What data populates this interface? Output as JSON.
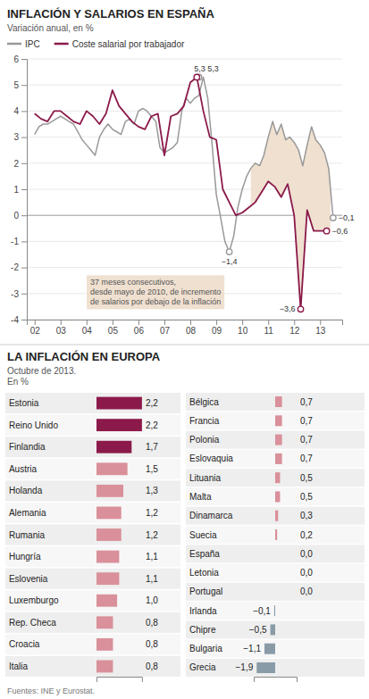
{
  "chart_data": [
    {
      "type": "line",
      "title": "INFLACIÓN Y SALARIOS EN ESPAÑA",
      "subtitle": "Variación anual, en %",
      "legend": "top",
      "grid": true,
      "series": [
        {
          "name": "IPC",
          "color": "#999999",
          "x": [
            2002.0,
            2002.17,
            2002.33,
            2002.5,
            2002.67,
            2002.83,
            2003.0,
            2003.17,
            2003.33,
            2003.5,
            2003.67,
            2003.83,
            2004.0,
            2004.17,
            2004.33,
            2004.5,
            2004.67,
            2004.83,
            2005.0,
            2005.17,
            2005.33,
            2005.5,
            2005.67,
            2005.83,
            2006.0,
            2006.17,
            2006.33,
            2006.5,
            2006.67,
            2006.83,
            2007.0,
            2007.17,
            2007.33,
            2007.5,
            2007.67,
            2007.83,
            2008.0,
            2008.17,
            2008.33,
            2008.5,
            2008.67,
            2008.83,
            2009.0,
            2009.17,
            2009.33,
            2009.5,
            2009.67,
            2009.83,
            2010.0,
            2010.17,
            2010.33,
            2010.5,
            2010.67,
            2010.83,
            2011.0,
            2011.17,
            2011.33,
            2011.5,
            2011.67,
            2011.83,
            2012.0,
            2012.17,
            2012.33,
            2012.5,
            2012.67,
            2012.83,
            2013.0,
            2013.17,
            2013.33,
            2013.5
          ],
          "values": [
            3.1,
            3.4,
            3.5,
            3.5,
            3.6,
            3.7,
            3.8,
            3.7,
            3.6,
            3.5,
            3.2,
            2.9,
            2.7,
            2.5,
            2.3,
            3.0,
            3.3,
            3.5,
            3.3,
            3.2,
            3.1,
            3.6,
            3.7,
            3.5,
            4.0,
            4.1,
            4.0,
            3.8,
            3.6,
            2.6,
            2.4,
            2.5,
            2.6,
            2.8,
            4.0,
            4.5,
            4.3,
            4.5,
            4.6,
            5.3,
            4.5,
            2.8,
            0.8,
            -0.1,
            -1.0,
            -1.4,
            -0.8,
            0.3,
            1.0,
            1.5,
            1.8,
            2.0,
            1.9,
            2.3,
            3.0,
            3.6,
            3.1,
            3.5,
            2.9,
            3.0,
            2.8,
            2.5,
            1.9,
            2.7,
            3.4,
            2.9,
            2.7,
            2.4,
            1.8,
            -0.1
          ]
        },
        {
          "name": "Coste salarial por trabajador",
          "color": "#8B1A4A",
          "x": [
            2002.0,
            2002.25,
            2002.5,
            2002.75,
            2003.0,
            2003.25,
            2003.5,
            2003.75,
            2004.0,
            2004.25,
            2004.5,
            2004.75,
            2005.0,
            2005.25,
            2005.5,
            2005.75,
            2006.0,
            2006.25,
            2006.5,
            2006.75,
            2007.0,
            2007.25,
            2007.5,
            2007.75,
            2008.0,
            2008.25,
            2008.5,
            2008.75,
            2009.0,
            2009.25,
            2009.5,
            2009.75,
            2010.0,
            2010.25,
            2010.5,
            2010.75,
            2011.0,
            2011.25,
            2011.5,
            2011.75,
            2012.0,
            2012.25,
            2012.5,
            2012.75,
            2013.25
          ],
          "values": [
            3.9,
            3.7,
            3.6,
            4.0,
            4.0,
            3.8,
            3.6,
            3.5,
            4.0,
            3.8,
            3.5,
            3.9,
            4.8,
            4.2,
            3.9,
            3.6,
            3.4,
            3.3,
            3.8,
            3.9,
            2.3,
            3.8,
            3.9,
            4.2,
            5.1,
            5.3,
            4.0,
            3.0,
            2.9,
            1.0,
            0.5,
            0.0,
            0.1,
            0.3,
            0.5,
            0.9,
            1.3,
            1.1,
            0.7,
            1.2,
            0.0,
            -3.6,
            0.2,
            -0.6,
            -0.6
          ]
        }
      ],
      "xlim": [
        2001.7,
        2013.85
      ],
      "xticks": [
        {
          "value": 2002,
          "label": "02"
        },
        {
          "value": 2003,
          "label": "03"
        },
        {
          "value": 2004,
          "label": "04"
        },
        {
          "value": 2005,
          "label": "05"
        },
        {
          "value": 2006,
          "label": "06"
        },
        {
          "value": 2007,
          "label": "07"
        },
        {
          "value": 2008,
          "label": "08"
        },
        {
          "value": 2009,
          "label": "09"
        },
        {
          "value": 2010,
          "label": "10"
        },
        {
          "value": 2011,
          "label": "11"
        },
        {
          "value": 2012,
          "label": "12"
        },
        {
          "value": 2013,
          "label": "13"
        }
      ],
      "ylim": [
        -4,
        6
      ],
      "yticks": [
        -4,
        -3,
        -2,
        -1,
        0,
        1,
        2,
        3,
        4,
        5,
        6
      ],
      "shade": {
        "x_start": 2010.33,
        "x_end": 2013.4,
        "color": "#EFE0D0",
        "label": "37 meses consecutivos,\ndesde mayo de 2010, de incremento\nde salarios por debajo de la inflación"
      },
      "annotations": [
        {
          "text": "5,3 5,3",
          "points": [
            {
              "x": 2008.33,
              "y": 5.3,
              "color": "#999999"
            },
            {
              "x": 2008.25,
              "y": 5.3,
              "color": "#8B1A4A"
            }
          ]
        },
        {
          "text": "−1,4",
          "points": [
            {
              "x": 2009.5,
              "y": -1.4,
              "color": "#999999"
            }
          ]
        },
        {
          "text": "−3,6",
          "points": [
            {
              "x": 2012.25,
              "y": -3.6,
              "color": "#8B1A4A"
            }
          ]
        },
        {
          "text": "−0,1",
          "points": [
            {
              "x": 2013.5,
              "y": -0.1,
              "color": "#999999"
            }
          ]
        },
        {
          "text": "−0,6",
          "points": [
            {
              "x": 2013.25,
              "y": -0.6,
              "color": "#8B1A4A"
            }
          ]
        }
      ]
    },
    {
      "type": "bar",
      "orientation": "horizontal",
      "title": "LA INFLACIÓN EN EUROPA",
      "subtitle": [
        "Octubre de 2013.",
        "En %"
      ],
      "source": "Fuentes: INE y Eurostat.",
      "categories": [
        "Estonia",
        "Reino Unido",
        "Finlandia",
        "Austria",
        "Holanda",
        "Alemania",
        "Rumania",
        "Hungría",
        "Eslovenia",
        "Luxemburgo",
        "Rep. Checa",
        "Croacia",
        "Italia"
      ],
      "values": [
        2.2,
        2.2,
        1.7,
        1.5,
        1.3,
        1.2,
        1.2,
        1.1,
        1.1,
        1.0,
        0.8,
        0.8,
        0.8
      ],
      "value_labels": [
        "2,2",
        "2,2",
        "1,7",
        "1,5",
        "1,3",
        "1,2",
        "1,2",
        "1,1",
        "1,1",
        "1,0",
        "0,8",
        "0,8",
        "0,8"
      ],
      "colors": [
        "#8B1A4A",
        "#8B1A4A",
        "#8B1A4A",
        "#D9909A",
        "#D9909A",
        "#D9909A",
        "#D9909A",
        "#D9909A",
        "#D9909A",
        "#D9909A",
        "#D9909A",
        "#D9909A",
        "#D9909A"
      ],
      "xlim": [
        0,
        2.2
      ],
      "xticks": [],
      "tick_labels": "y",
      "data_labels": true
    },
    {
      "type": "bar",
      "orientation": "horizontal",
      "categories": [
        "Bélgica",
        "Francia",
        "Polonia",
        "Eslovaquia",
        "Lituania",
        "Malta",
        "Dinamarca",
        "Suecia",
        "España",
        "Letonia",
        "Portugal",
        "Irlanda",
        "Chipre",
        "Bulgaria",
        "Grecia"
      ],
      "values": [
        0.7,
        0.7,
        0.7,
        0.7,
        0.5,
        0.5,
        0.3,
        0.2,
        0.0,
        0.0,
        0.0,
        -0.1,
        -0.5,
        -1.1,
        -1.9
      ],
      "value_labels": [
        "0,7",
        "0,7",
        "0,7",
        "0,7",
        "0,5",
        "0,5",
        "0,3",
        "0,2",
        "0,0",
        "0,0",
        "0,0",
        "−0,1",
        "−0,5",
        "−1,1",
        "−1,9"
      ],
      "colors": [
        "#D9909A",
        "#D9909A",
        "#D9909A",
        "#D9909A",
        "#D9909A",
        "#D9909A",
        "#D9909A",
        "#D9909A",
        "#D9909A",
        "#D9909A",
        "#D9909A",
        "#8A9BA8",
        "#8A9BA8",
        "#8A9BA8",
        "#8A9BA8"
      ],
      "xlim": [
        -2.2,
        2.2
      ],
      "xticks": [],
      "tick_labels": "y",
      "data_labels": true
    }
  ]
}
